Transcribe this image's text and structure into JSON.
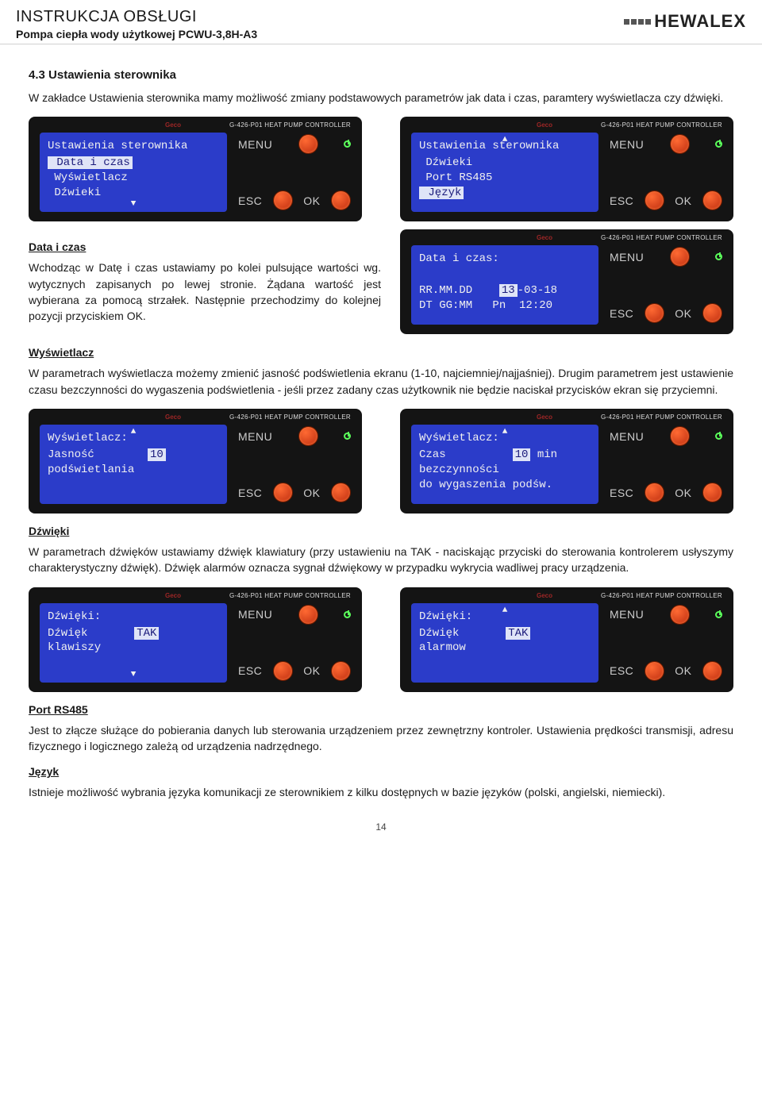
{
  "header": {
    "title": "INSTRUKCJA OBSŁUGI",
    "subtitle": "Pompa ciepła wody użytkowej PCWU-3,8H-A3",
    "brand": "HEWALEX"
  },
  "section": {
    "num_title": "4.3 Ustawienia sterownika",
    "intro": "W zakładce Ustawienia sterownika mamy możliwość zmiany podstawowych parametrów jak data i czas, paramtery wyświetlacza czy dźwięki."
  },
  "dev_common": {
    "brand": "Geco",
    "model": "G-426-P01 HEAT PUMP CONTROLLER",
    "menu": "MENU",
    "esc": "ESC",
    "ok": "OK"
  },
  "devices": {
    "top_left": {
      "title": "Ustawienia sterownika",
      "lines": [
        " Data i czas",
        " Wyświetlacz",
        " Dźwieki"
      ],
      "selected_idx": 0,
      "arrow": "down"
    },
    "top_right": {
      "title": "Ustawienia sterownika",
      "lines": [
        " Dźwieki",
        " Port RS485",
        " Język"
      ],
      "selected_idx": 2,
      "arrow": "up"
    },
    "date": {
      "title": "Data i czas:",
      "lines": [
        "",
        "RR.MM.DD    13-03-18",
        "DT GG:MM   Pn  12:20"
      ],
      "sel_inline": "13",
      "arrow": "none"
    },
    "disp_left": {
      "title": "Wyświetlacz:",
      "lines": [
        "",
        "Jasność        10",
        "podświetlania"
      ],
      "sel_inline": "10",
      "arrow": "up"
    },
    "disp_right": {
      "title": "Wyświetlacz:",
      "lines": [
        "Czas          10 min",
        "bezczynności",
        "do wygaszenia podśw."
      ],
      "sel_inline": "10",
      "arrow": "up"
    },
    "snd_left": {
      "title": "Dźwięki:",
      "lines": [
        "Dźwięk       TAK",
        "klawiszy",
        ""
      ],
      "sel_inline": "TAK",
      "arrow": "down"
    },
    "snd_right": {
      "title": "Dźwięki:",
      "lines": [
        "Dźwięk       TAK",
        "alarmow",
        ""
      ],
      "sel_inline": "TAK",
      "arrow": "up"
    }
  },
  "subsections": {
    "date": {
      "heading": "Data i czas",
      "body": "Wchodząc w Datę i czas ustawiamy po kolei pulsujące wartości wg. wytycznych zapisanych po lewej stronie. Żądana wartość jest wybierana za pomocą strzałek. Następnie przechodzimy do kolejnej pozycji przyciskiem OK."
    },
    "display": {
      "heading": "Wyświetlacz",
      "body": "W parametrach wyświetlacza możemy zmienić jasność podświetlenia ekranu (1-10, najciemniej/najjaśniej). Drugim parametrem jest ustawienie czasu bezczynności do wygaszenia podświetlenia - jeśli przez zadany czas użytkownik nie będzie naciskał przycisków ekran się przyciemni."
    },
    "sounds": {
      "heading": "Dźwięki",
      "body": "W parametrach dźwięków ustawiamy dźwięk klawiatury (przy ustawieniu na TAK - naciskając przyciski do sterowania kontrolerem usłyszymy charakterystyczny dźwięk). Dźwięk alarmów oznacza sygnał dźwiękowy w przypadku wykrycia wadliwej pracy urządzenia."
    },
    "port": {
      "heading": "Port RS485",
      "body": "Jest to złącze służące do pobierania danych lub sterowania urządzeniem przez zewnętrzny kontroler. Ustawienia prędkości transmisji, adresu fizycznego i logicznego zależą od urządzenia nadrzędnego."
    },
    "lang": {
      "heading": "Język",
      "body": "Istnieje możliwość wybrania języka komunikacji ze sterownikiem z kilku dostępnych w bazie języków (polski, angielski, niemiecki)."
    }
  },
  "page_number": "14"
}
